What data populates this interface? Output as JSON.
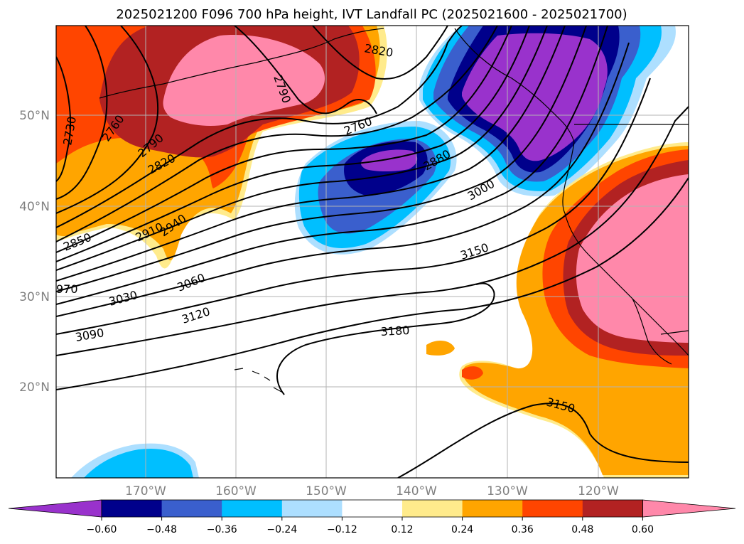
{
  "figure": {
    "title": "2025021200 F096 700 hPa height, IVT Landfall PC (2025021600 - 2025021700)"
  },
  "map": {
    "lat_ticks": [
      "50°N",
      "40°N",
      "30°N",
      "20°N"
    ],
    "lon_ticks": [
      "170°W",
      "160°W",
      "150°W",
      "140°W",
      "130°W",
      "120°W"
    ],
    "contour_labels": [
      "2730",
      "2760",
      "2790",
      "2820",
      "2850",
      "2910",
      "2940",
      "970",
      "3030",
      "3060",
      "3090",
      "3120",
      "2820",
      "2790",
      "2760",
      "2880",
      "3000",
      "3150",
      "3180",
      "3150"
    ]
  },
  "colorbar": {
    "tick_labels": [
      "−0.60",
      "−0.48",
      "−0.36",
      "−0.24",
      "−0.12",
      "0.12",
      "0.24",
      "0.36",
      "0.48",
      "0.60"
    ],
    "colors": [
      "#9932CC",
      "#00008B",
      "#3A5FCD",
      "#00BFFF",
      "#ADDFFF",
      "#FFFFFF",
      "#FFEB8C",
      "#FFA500",
      "#FF4500",
      "#B22222",
      "#FF88AA"
    ]
  }
}
